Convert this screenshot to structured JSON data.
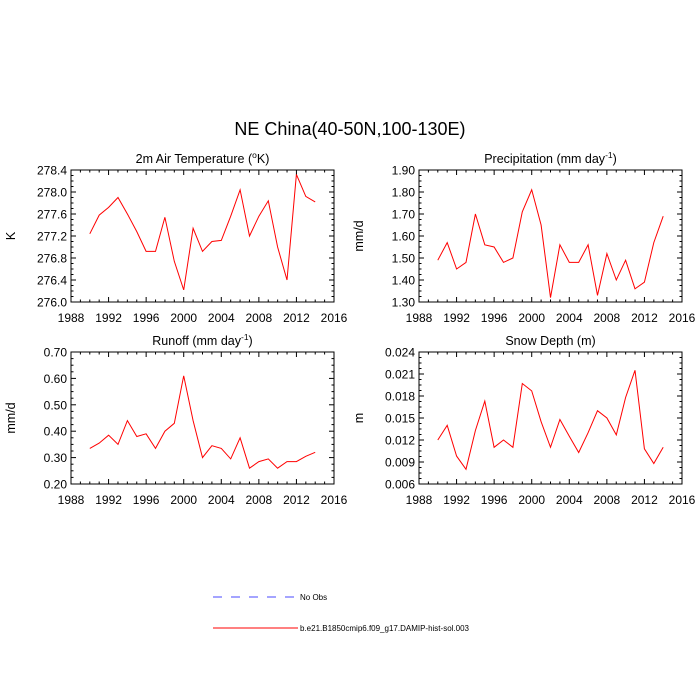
{
  "page_title": "NE China(40-50N,100-130E)",
  "chart_data": [
    {
      "type": "line",
      "title": "2m Air Temperature (°K)",
      "title_parts": [
        "2m Air Temperature (",
        "o",
        "K)"
      ],
      "ylabel": "K",
      "xlim": [
        1988,
        2016
      ],
      "ylim": [
        276.0,
        278.4
      ],
      "xticks": [
        1988,
        1992,
        1996,
        2000,
        2004,
        2008,
        2012,
        2016
      ],
      "yticks": [
        "276.0",
        "276.4",
        "276.8",
        "277.2",
        "277.6",
        "278.0",
        "278.4"
      ],
      "series": [
        {
          "name": "b.e21.B1850cmip6.f09_g17.DAMIP-hist-sol.003",
          "color": "#ff0000",
          "x": [
            1990,
            1991,
            1992,
            1993,
            1994,
            1995,
            1996,
            1997,
            1998,
            1999,
            2000,
            2001,
            2002,
            2003,
            2004,
            2005,
            2006,
            2007,
            2008,
            2009,
            2010,
            2011,
            2012,
            2013,
            2014
          ],
          "values": [
            277.24,
            277.58,
            277.72,
            277.9,
            277.6,
            277.28,
            276.92,
            276.92,
            277.54,
            276.74,
            276.22,
            277.34,
            276.92,
            277.1,
            277.12,
            277.56,
            278.04,
            277.2,
            277.56,
            277.84,
            277.0,
            276.4,
            278.32,
            277.92,
            277.82
          ]
        }
      ]
    },
    {
      "type": "line",
      "title": "Precipitation (mm day-1)",
      "title_parts": [
        "Precipitation (mm day",
        "-1",
        ")"
      ],
      "ylabel": "mm/d",
      "xlim": [
        1988,
        2016
      ],
      "ylim": [
        1.3,
        1.9
      ],
      "xticks": [
        1988,
        1992,
        1996,
        2000,
        2004,
        2008,
        2012,
        2016
      ],
      "yticks": [
        "1.30",
        "1.40",
        "1.50",
        "1.60",
        "1.70",
        "1.80",
        "1.90"
      ],
      "series": [
        {
          "name": "b.e21.B1850cmip6.f09_g17.DAMIP-hist-sol.003",
          "color": "#ff0000",
          "x": [
            1990,
            1991,
            1992,
            1993,
            1994,
            1995,
            1996,
            1997,
            1998,
            1999,
            2000,
            2001,
            2002,
            2003,
            2004,
            2005,
            2006,
            2007,
            2008,
            2009,
            2010,
            2011,
            2012,
            2013,
            2014
          ],
          "values": [
            1.49,
            1.57,
            1.45,
            1.48,
            1.7,
            1.56,
            1.55,
            1.48,
            1.5,
            1.71,
            1.81,
            1.65,
            1.32,
            1.56,
            1.48,
            1.48,
            1.56,
            1.33,
            1.52,
            1.4,
            1.49,
            1.36,
            1.39,
            1.57,
            1.69
          ]
        }
      ]
    },
    {
      "type": "line",
      "title": "Runoff (mm day-1)",
      "title_parts": [
        "Runoff (mm day",
        "-1",
        ")"
      ],
      "ylabel": "mm/d",
      "xlim": [
        1988,
        2016
      ],
      "ylim": [
        0.2,
        0.7
      ],
      "xticks": [
        1988,
        1992,
        1996,
        2000,
        2004,
        2008,
        2012,
        2016
      ],
      "yticks": [
        "0.20",
        "0.30",
        "0.40",
        "0.50",
        "0.60",
        "0.70"
      ],
      "series": [
        {
          "name": "b.e21.B1850cmip6.f09_g17.DAMIP-hist-sol.003",
          "color": "#ff0000",
          "x": [
            1990,
            1991,
            1992,
            1993,
            1994,
            1995,
            1996,
            1997,
            1998,
            1999,
            2000,
            2001,
            2002,
            2003,
            2004,
            2005,
            2006,
            2007,
            2008,
            2009,
            2010,
            2011,
            2012,
            2013,
            2014
          ],
          "values": [
            0.335,
            0.355,
            0.385,
            0.35,
            0.44,
            0.38,
            0.39,
            0.335,
            0.4,
            0.43,
            0.61,
            0.44,
            0.3,
            0.345,
            0.335,
            0.295,
            0.375,
            0.26,
            0.285,
            0.295,
            0.26,
            0.285,
            0.285,
            0.305,
            0.32
          ]
        }
      ]
    },
    {
      "type": "line",
      "title": "Snow Depth (m)",
      "title_parts": [
        "Snow Depth (m)",
        "",
        ""
      ],
      "ylabel": "m",
      "xlim": [
        1988,
        2016
      ],
      "ylim": [
        0.006,
        0.024
      ],
      "xticks": [
        1988,
        1992,
        1996,
        2000,
        2004,
        2008,
        2012,
        2016
      ],
      "yticks": [
        "0.006",
        "0.009",
        "0.012",
        "0.015",
        "0.018",
        "0.021",
        "0.024"
      ],
      "series": [
        {
          "name": "b.e21.B1850cmip6.f09_g17.DAMIP-hist-sol.003",
          "color": "#ff0000",
          "x": [
            1990,
            1991,
            1992,
            1993,
            1994,
            1995,
            1996,
            1997,
            1998,
            1999,
            2000,
            2001,
            2002,
            2003,
            2004,
            2005,
            2006,
            2007,
            2008,
            2009,
            2010,
            2011,
            2012,
            2013,
            2014
          ],
          "values": [
            0.012,
            0.014,
            0.0098,
            0.008,
            0.0133,
            0.0173,
            0.011,
            0.012,
            0.011,
            0.0197,
            0.0187,
            0.0145,
            0.011,
            0.0148,
            0.0125,
            0.0103,
            0.013,
            0.016,
            0.015,
            0.0127,
            0.0178,
            0.0215,
            0.0108,
            0.0088,
            0.011
          ]
        }
      ]
    }
  ],
  "legend": [
    {
      "label": "No Obs",
      "color": "#4a4aff",
      "style": "dashed"
    },
    {
      "label": "b.e21.B1850cmip6.f09_g17.DAMIP-hist-sol.003",
      "color": "#ff0000",
      "style": "solid"
    }
  ]
}
